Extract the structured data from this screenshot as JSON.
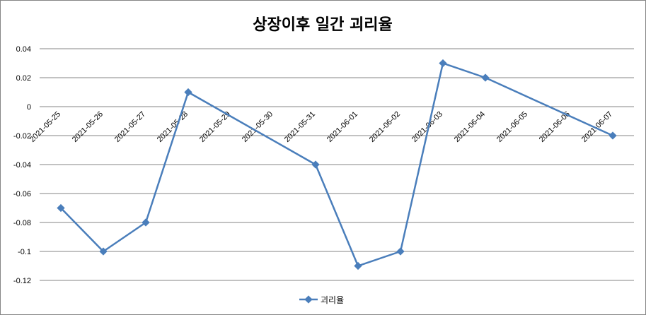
{
  "chart_data": {
    "type": "line",
    "title": "상장이후 일간 괴리율",
    "xlabel": "",
    "ylabel": "",
    "categories": [
      "2021-05-25",
      "2021-05-26",
      "2021-05-27",
      "2021-05-28",
      "2021-05-29",
      "2021-05-30",
      "2021-05-31",
      "2021-06-01",
      "2021-06-02",
      "2021-06-03",
      "2021-06-04",
      "2021-06-05",
      "2021-06-06",
      "2021-06-07"
    ],
    "x": [
      "2021-05-25",
      "2021-05-26",
      "2021-05-27",
      "2021-05-28",
      "2021-05-31",
      "2021-06-01",
      "2021-06-02",
      "2021-06-03",
      "2021-06-04",
      "2021-06-07"
    ],
    "series": [
      {
        "name": "괴리율",
        "values": [
          -0.07,
          -0.1,
          -0.08,
          0.01,
          -0.04,
          -0.11,
          -0.1,
          0.03,
          0.02,
          -0.02
        ]
      }
    ],
    "ylim": [
      -0.12,
      0.04
    ],
    "yticks": [
      0.04,
      0.02,
      0,
      -0.02,
      -0.04,
      -0.06,
      -0.08,
      -0.1,
      -0.12
    ],
    "ytick_labels": [
      "0.04",
      "0.02",
      "0",
      "-0.02",
      "-0.04",
      "-0.06",
      "-0.08",
      "-0.1",
      "-0.12"
    ],
    "grid": true,
    "legend_position": "bottom",
    "series_color": "#4A7EBB",
    "grid_color": "#868686"
  }
}
